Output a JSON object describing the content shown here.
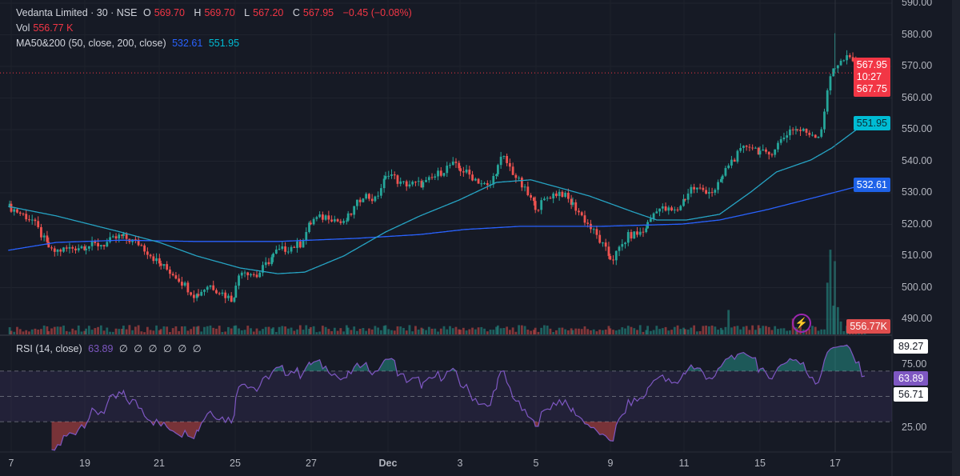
{
  "header": {
    "symbol": "Vedanta Limited · 30 · NSE",
    "o_label": "O",
    "o": "569.70",
    "h_label": "H",
    "h": "569.70",
    "l_label": "L",
    "l": "567.20",
    "c_label": "C",
    "c": "567.95",
    "change": "−0.45 (−0.08%)",
    "vol_label": "Vol",
    "vol": "556.77 K",
    "ma_label": "MA50&200 (50, close, 200, close)",
    "ma200": "532.61",
    "ma50": "551.95"
  },
  "rsi_legend": {
    "label": "RSI (14, close)",
    "value": "63.89",
    "extras": [
      "∅",
      "∅",
      "∅",
      "∅",
      "∅",
      "∅"
    ]
  },
  "price_axis": [
    "590.00",
    "580.00",
    "570.00",
    "560.00",
    "550.00",
    "540.00",
    "530.00",
    "520.00",
    "510.00",
    "500.00",
    "490.00"
  ],
  "rsi_axis": [
    "75.00",
    "25.00"
  ],
  "tags": {
    "last_price": "567.95",
    "countdown": "10:27",
    "prev": "567.75",
    "ma50": "551.95",
    "ma200": "532.61",
    "volume": "556.77K",
    "rsi_upper": "89.27",
    "rsi": "63.89",
    "rsi_ma": "56.71"
  },
  "time_axis": [
    "7",
    "19",
    "21",
    "25",
    "27",
    "Dec",
    "3",
    "5",
    "9",
    "11",
    "15",
    "17"
  ],
  "colors": {
    "up": "#26a69a",
    "down": "#ef5350",
    "ma50": "#26a4c4",
    "ma200": "#2962ff",
    "rsi": "#7e57c2",
    "bg": "#161a25"
  },
  "icons": {
    "alert": "lightning-bolt-icon"
  },
  "chart_data": {
    "type": "candlestick",
    "interval": "30m",
    "price_range": [
      490,
      590
    ],
    "rsi_range": [
      0,
      100
    ],
    "rsi_bands": [
      30,
      50,
      70
    ],
    "close_path": [
      [
        "11-14 15:00",
        525.7
      ],
      [
        "11-17 12:45",
        521.4
      ],
      [
        "11-18 09:45",
        511.3
      ],
      [
        "11-18 14:30",
        513
      ],
      [
        "11-19 12:15",
        513.8
      ],
      [
        "11-19 15:00",
        516.3
      ],
      [
        "11-20 12:00",
        513.8
      ],
      [
        "11-20 15:15",
        507.5
      ],
      [
        "11-21 11:45",
        503.7
      ],
      [
        "11-21 15:00",
        497.3
      ],
      [
        "11-24 11:00",
        501
      ],
      [
        "11-24 15:00",
        496
      ],
      [
        "11-25 10:00",
        506
      ],
      [
        "11-25 12:45",
        503.7
      ],
      [
        "11-26 09:45",
        511.3
      ],
      [
        "11-26 13:45",
        513.8
      ],
      [
        "11-27 09:30",
        521.4
      ],
      [
        "11-27 12:15",
        522.7
      ],
      [
        "11-27 14:45",
        520
      ],
      [
        "11-28 11:45",
        529.5
      ],
      [
        "11-28 13:45",
        527.7
      ],
      [
        "12-01 09:45",
        536.6
      ],
      [
        "12-01 11:45",
        532.8
      ],
      [
        "12-02 09:30",
        532.8
      ],
      [
        "12-02 14:00",
        539.1
      ],
      [
        "12-03 10:00",
        536.6
      ],
      [
        "12-03 14:00",
        531.5
      ],
      [
        "12-04 10:00",
        541.6
      ],
      [
        "12-04 13:00",
        532.8
      ],
      [
        "12-05 09:30",
        525.2
      ],
      [
        "12-05 11:30",
        529
      ],
      [
        "12-05 13:30",
        530.3
      ],
      [
        "12-08 09:45",
        525.2
      ],
      [
        "12-08 13:15",
        516.3
      ],
      [
        "12-09 09:30",
        508.7
      ],
      [
        "12-09 12:15",
        516.3
      ],
      [
        "12-09 14:45",
        517.6
      ],
      [
        "12-10 10:45",
        525.2
      ],
      [
        "12-10 14:00",
        524
      ],
      [
        "12-11 10:15",
        531.5
      ],
      [
        "12-11 14:15",
        530.3
      ],
      [
        "12-12 10:15",
        539.1
      ],
      [
        "12-12 13:30",
        545.4
      ],
      [
        "12-15 10:30",
        541.6
      ],
      [
        "12-15 14:30",
        550.5
      ],
      [
        "12-16 13:00",
        548
      ],
      [
        "12-16 15:00",
        569.5
      ],
      [
        "12-17 11:30",
        572.8
      ],
      [
        "12-17 14:15",
        567.95
      ]
    ],
    "ma50": [
      [
        "11-14 15:00",
        525.7
      ],
      [
        "11-18 10:30",
        522.7
      ],
      [
        "11-19 15:00",
        517.6
      ],
      [
        "11-20 15:15",
        514.3
      ],
      [
        "11-21 15:15",
        510
      ],
      [
        "11-25 10:00",
        506.2
      ],
      [
        "11-26 10:00",
        504.4
      ],
      [
        "11-26 14:30",
        504.9
      ],
      [
        "11-27 14:45",
        510
      ],
      [
        "12-01 09:15",
        517.6
      ],
      [
        "12-01 15:00",
        522.7
      ],
      [
        "12-02 15:15",
        527.7
      ],
      [
        "12-03 15:15",
        533.3
      ],
      [
        "12-04 14:45",
        534.1
      ],
      [
        "12-05 13:30",
        531.5
      ],
      [
        "12-08 12:00",
        529
      ],
      [
        "12-09 13:00",
        524
      ],
      [
        "12-10 10:45",
        521.4
      ],
      [
        "12-11 09:30",
        521.4
      ],
      [
        "12-11 15:00",
        523.2
      ],
      [
        "12-12 14:00",
        530.3
      ],
      [
        "12-15 12:00",
        536.6
      ],
      [
        "12-16 11:30",
        540.4
      ],
      [
        "12-16 15:00",
        544.2
      ],
      [
        "12-17 14:15",
        551.95
      ]
    ],
    "ma200": [
      [
        "11-14 15:00",
        511.8
      ],
      [
        "11-18 10:30",
        514.3
      ],
      [
        "11-19 15:00",
        515
      ],
      [
        "11-21 15:15",
        514.6
      ],
      [
        "11-26 10:00",
        514.6
      ],
      [
        "11-28 10:45",
        515.6
      ],
      [
        "12-01 15:00",
        516.8
      ],
      [
        "12-03 10:00",
        518.4
      ],
      [
        "12-04 13:00",
        519.4
      ],
      [
        "12-08 14:00",
        519.4
      ],
      [
        "12-10 15:00",
        520.1
      ],
      [
        "12-11 15:00",
        521.4
      ],
      [
        "12-15 10:30",
        524.7
      ],
      [
        "12-16 11:30",
        528.2
      ],
      [
        "12-17 14:15",
        532.61
      ]
    ],
    "volume_k_typical": 450,
    "volume_k_peaks": [
      [
        "12-12 10:15",
        1700
      ],
      [
        "12-15 14:45",
        1100
      ],
      [
        "12-16 14:15",
        3600
      ],
      [
        "12-16 14:45",
        5900
      ],
      [
        "12-16 15:15",
        2000
      ],
      [
        "12-17 09:15",
        5100
      ],
      [
        "12-17 09:45",
        1900
      ],
      [
        "12-17 10:15",
        900
      ],
      [
        "12-17 14:15",
        556.77
      ]
    ]
  }
}
